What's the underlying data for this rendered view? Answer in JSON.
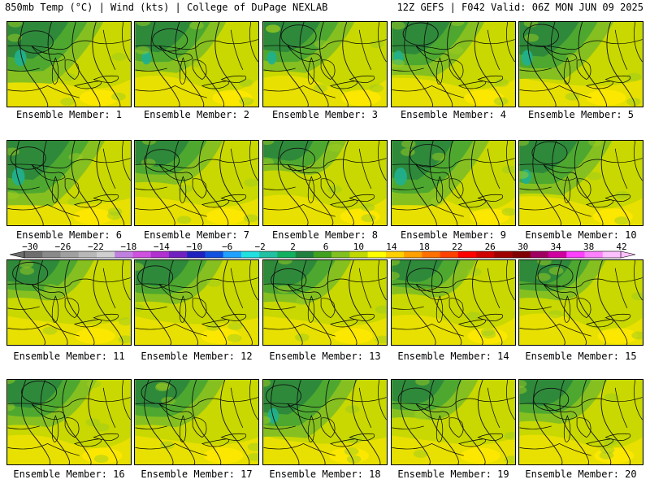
{
  "header": {
    "left": "850mb Temp (°C) | Wind (kts) | College of DuPage NEXLAB",
    "right": "12Z GEFS | F042 Valid: 06Z MON JUN 09 2025"
  },
  "members": [
    {
      "label": "Ensemble Member: 1",
      "cool": 0.75
    },
    {
      "label": "Ensemble Member: 2",
      "cool": 0.6
    },
    {
      "label": "Ensemble Member: 3",
      "cool": 0.6
    },
    {
      "label": "Ensemble Member: 4",
      "cool": 0.65
    },
    {
      "label": "Ensemble Member: 5",
      "cool": 0.7
    },
    {
      "label": "Ensemble Member: 6",
      "cool": 0.8
    },
    {
      "label": "Ensemble Member: 7",
      "cool": 0.5
    },
    {
      "label": "Ensemble Member: 8",
      "cool": 0.35
    },
    {
      "label": "Ensemble Member: 9",
      "cool": 0.8
    },
    {
      "label": "Ensemble Member: 10",
      "cool": 0.65
    },
    {
      "label": "Ensemble Member: 11",
      "cool": 0.45
    },
    {
      "label": "Ensemble Member: 12",
      "cool": 0.5
    },
    {
      "label": "Ensemble Member: 13",
      "cool": 0.5
    },
    {
      "label": "Ensemble Member: 14",
      "cool": 0.4
    },
    {
      "label": "Ensemble Member: 15",
      "cool": 0.45
    },
    {
      "label": "Ensemble Member: 16",
      "cool": 0.55
    },
    {
      "label": "Ensemble Member: 17",
      "cool": 0.55
    },
    {
      "label": "Ensemble Member: 18",
      "cool": 0.7
    },
    {
      "label": "Ensemble Member: 19",
      "cool": 0.45
    },
    {
      "label": "Ensemble Member: 20",
      "cool": 0.5
    }
  ],
  "colorbar": {
    "ticks": [
      "−30",
      "−26",
      "−22",
      "−18",
      "−14",
      "−10",
      "−6",
      "−2",
      "2",
      "6",
      "10",
      "14",
      "18",
      "22",
      "26",
      "30",
      "34",
      "38",
      "42"
    ],
    "colors": [
      "#6e6e6e",
      "#8a8a8a",
      "#a0a0a0",
      "#b8b8b8",
      "#cfcfcf",
      "#c080e0",
      "#d050e0",
      "#b030d0",
      "#7020c0",
      "#2020c0",
      "#1050e0",
      "#20a0ff",
      "#20e0e0",
      "#20c0a0",
      "#10b060",
      "#208040",
      "#40a020",
      "#80c020",
      "#c0d800",
      "#ffff00",
      "#ffd000",
      "#ffa000",
      "#ff7000",
      "#ff4000",
      "#ff0000",
      "#d00000",
      "#a00000",
      "#800000",
      "#a00060",
      "#d000a0",
      "#ff40ff",
      "#ff80ff",
      "#ffc0ff"
    ]
  }
}
